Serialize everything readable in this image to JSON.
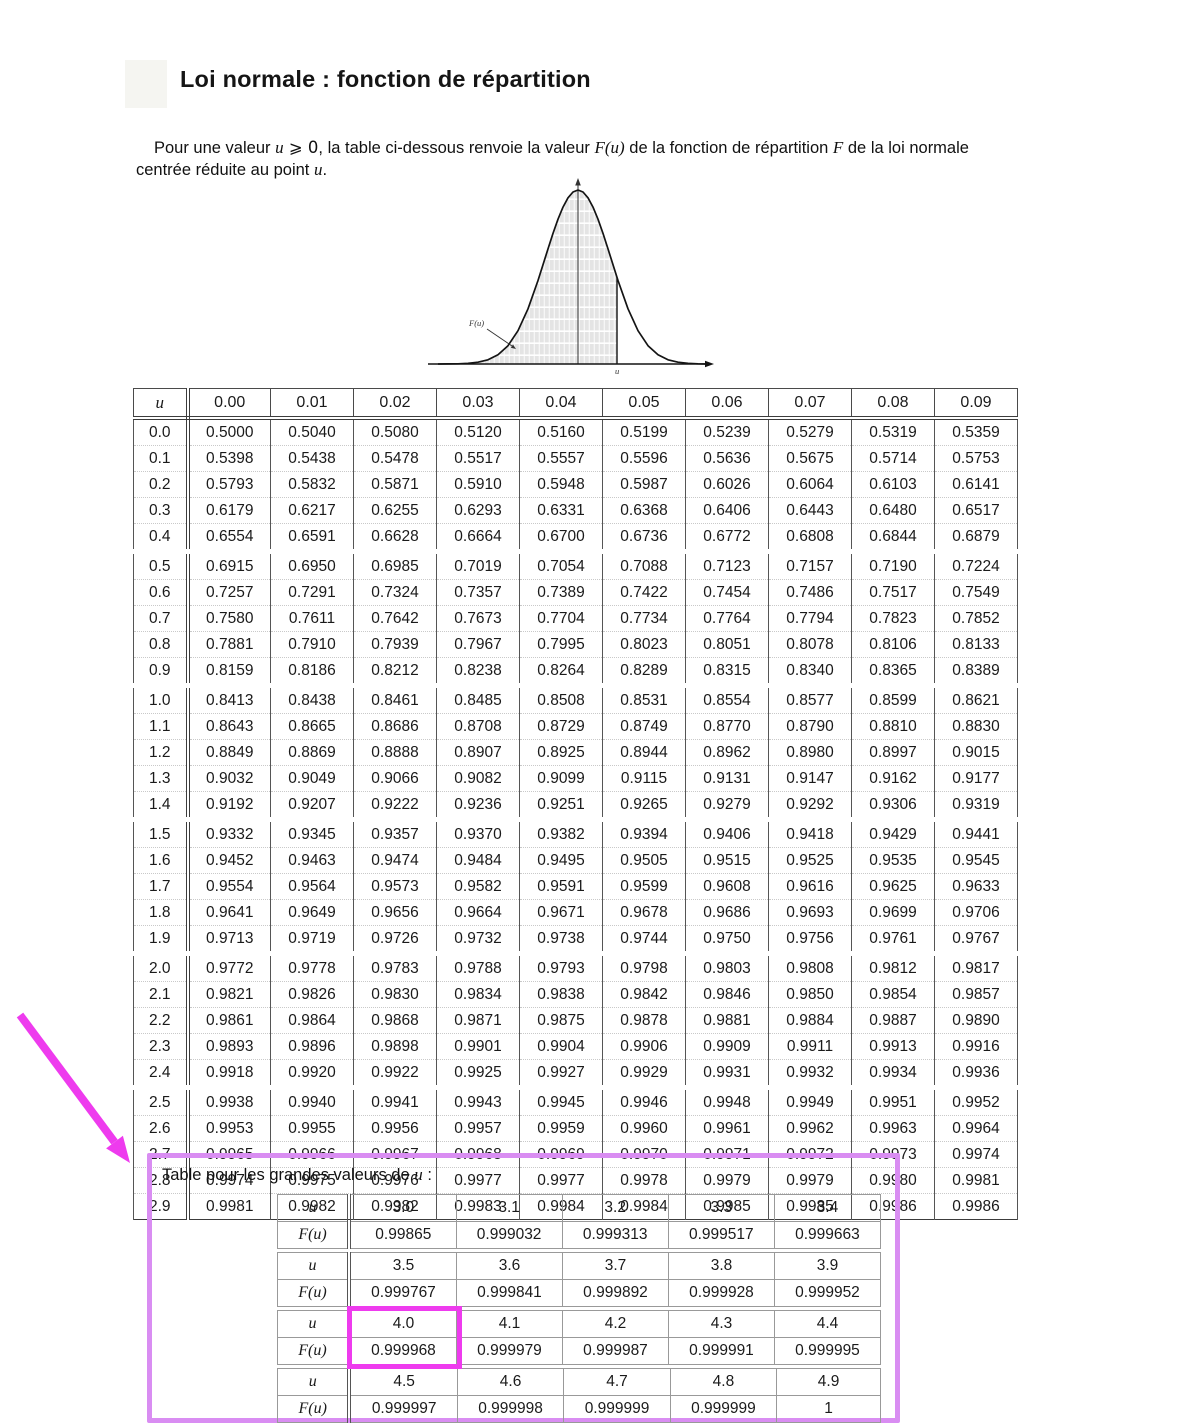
{
  "page": {
    "title": "Loi normale : fonction de répartition"
  },
  "intro": {
    "p1": "Pour une valeur ",
    "m1": "u",
    "s1": " ⩾ 0",
    "p2": ", la table ci-dessous renvoie la valeur ",
    "m2": "F(u)",
    "p3": " de la fonction de répartition ",
    "m3": "F",
    "p4": " de la loi normale centrée réduite au point ",
    "m4": "u",
    "p5": "."
  },
  "diagram": {
    "area_label": "F(u)",
    "axis_label": "u"
  },
  "main_table": {
    "corner_header": "u",
    "col_headers": [
      "0.00",
      "0.01",
      "0.02",
      "0.03",
      "0.04",
      "0.05",
      "0.06",
      "0.07",
      "0.08",
      "0.09"
    ],
    "rows": [
      [
        "0.0",
        "0.5000",
        "0.5040",
        "0.5080",
        "0.5120",
        "0.5160",
        "0.5199",
        "0.5239",
        "0.5279",
        "0.5319",
        "0.5359"
      ],
      [
        "0.1",
        "0.5398",
        "0.5438",
        "0.5478",
        "0.5517",
        "0.5557",
        "0.5596",
        "0.5636",
        "0.5675",
        "0.5714",
        "0.5753"
      ],
      [
        "0.2",
        "0.5793",
        "0.5832",
        "0.5871",
        "0.5910",
        "0.5948",
        "0.5987",
        "0.6026",
        "0.6064",
        "0.6103",
        "0.6141"
      ],
      [
        "0.3",
        "0.6179",
        "0.6217",
        "0.6255",
        "0.6293",
        "0.6331",
        "0.6368",
        "0.6406",
        "0.6443",
        "0.6480",
        "0.6517"
      ],
      [
        "0.4",
        "0.6554",
        "0.6591",
        "0.6628",
        "0.6664",
        "0.6700",
        "0.6736",
        "0.6772",
        "0.6808",
        "0.6844",
        "0.6879"
      ],
      [
        "0.5",
        "0.6915",
        "0.6950",
        "0.6985",
        "0.7019",
        "0.7054",
        "0.7088",
        "0.7123",
        "0.7157",
        "0.7190",
        "0.7224"
      ],
      [
        "0.6",
        "0.7257",
        "0.7291",
        "0.7324",
        "0.7357",
        "0.7389",
        "0.7422",
        "0.7454",
        "0.7486",
        "0.7517",
        "0.7549"
      ],
      [
        "0.7",
        "0.7580",
        "0.7611",
        "0.7642",
        "0.7673",
        "0.7704",
        "0.7734",
        "0.7764",
        "0.7794",
        "0.7823",
        "0.7852"
      ],
      [
        "0.8",
        "0.7881",
        "0.7910",
        "0.7939",
        "0.7967",
        "0.7995",
        "0.8023",
        "0.8051",
        "0.8078",
        "0.8106",
        "0.8133"
      ],
      [
        "0.9",
        "0.8159",
        "0.8186",
        "0.8212",
        "0.8238",
        "0.8264",
        "0.8289",
        "0.8315",
        "0.8340",
        "0.8365",
        "0.8389"
      ],
      [
        "1.0",
        "0.8413",
        "0.8438",
        "0.8461",
        "0.8485",
        "0.8508",
        "0.8531",
        "0.8554",
        "0.8577",
        "0.8599",
        "0.8621"
      ],
      [
        "1.1",
        "0.8643",
        "0.8665",
        "0.8686",
        "0.8708",
        "0.8729",
        "0.8749",
        "0.8770",
        "0.8790",
        "0.8810",
        "0.8830"
      ],
      [
        "1.2",
        "0.8849",
        "0.8869",
        "0.8888",
        "0.8907",
        "0.8925",
        "0.8944",
        "0.8962",
        "0.8980",
        "0.8997",
        "0.9015"
      ],
      [
        "1.3",
        "0.9032",
        "0.9049",
        "0.9066",
        "0.9082",
        "0.9099",
        "0.9115",
        "0.9131",
        "0.9147",
        "0.9162",
        "0.9177"
      ],
      [
        "1.4",
        "0.9192",
        "0.9207",
        "0.9222",
        "0.9236",
        "0.9251",
        "0.9265",
        "0.9279",
        "0.9292",
        "0.9306",
        "0.9319"
      ],
      [
        "1.5",
        "0.9332",
        "0.9345",
        "0.9357",
        "0.9370",
        "0.9382",
        "0.9394",
        "0.9406",
        "0.9418",
        "0.9429",
        "0.9441"
      ],
      [
        "1.6",
        "0.9452",
        "0.9463",
        "0.9474",
        "0.9484",
        "0.9495",
        "0.9505",
        "0.9515",
        "0.9525",
        "0.9535",
        "0.9545"
      ],
      [
        "1.7",
        "0.9554",
        "0.9564",
        "0.9573",
        "0.9582",
        "0.9591",
        "0.9599",
        "0.9608",
        "0.9616",
        "0.9625",
        "0.9633"
      ],
      [
        "1.8",
        "0.9641",
        "0.9649",
        "0.9656",
        "0.9664",
        "0.9671",
        "0.9678",
        "0.9686",
        "0.9693",
        "0.9699",
        "0.9706"
      ],
      [
        "1.9",
        "0.9713",
        "0.9719",
        "0.9726",
        "0.9732",
        "0.9738",
        "0.9744",
        "0.9750",
        "0.9756",
        "0.9761",
        "0.9767"
      ],
      [
        "2.0",
        "0.9772",
        "0.9778",
        "0.9783",
        "0.9788",
        "0.9793",
        "0.9798",
        "0.9803",
        "0.9808",
        "0.9812",
        "0.9817"
      ],
      [
        "2.1",
        "0.9821",
        "0.9826",
        "0.9830",
        "0.9834",
        "0.9838",
        "0.9842",
        "0.9846",
        "0.9850",
        "0.9854",
        "0.9857"
      ],
      [
        "2.2",
        "0.9861",
        "0.9864",
        "0.9868",
        "0.9871",
        "0.9875",
        "0.9878",
        "0.9881",
        "0.9884",
        "0.9887",
        "0.9890"
      ],
      [
        "2.3",
        "0.9893",
        "0.9896",
        "0.9898",
        "0.9901",
        "0.9904",
        "0.9906",
        "0.9909",
        "0.9911",
        "0.9913",
        "0.9916"
      ],
      [
        "2.4",
        "0.9918",
        "0.9920",
        "0.9922",
        "0.9925",
        "0.9927",
        "0.9929",
        "0.9931",
        "0.9932",
        "0.9934",
        "0.9936"
      ],
      [
        "2.5",
        "0.9938",
        "0.9940",
        "0.9941",
        "0.9943",
        "0.9945",
        "0.9946",
        "0.9948",
        "0.9949",
        "0.9951",
        "0.9952"
      ],
      [
        "2.6",
        "0.9953",
        "0.9955",
        "0.9956",
        "0.9957",
        "0.9959",
        "0.9960",
        "0.9961",
        "0.9962",
        "0.9963",
        "0.9964"
      ],
      [
        "2.7",
        "0.9965",
        "0.9966",
        "0.9967",
        "0.9968",
        "0.9969",
        "0.9970",
        "0.9971",
        "0.9972",
        "0.9973",
        "0.9974"
      ],
      [
        "2.8",
        "0.9974",
        "0.9975",
        "0.9976",
        "0.9977",
        "0.9977",
        "0.9978",
        "0.9979",
        "0.9979",
        "0.9980",
        "0.9981"
      ],
      [
        "2.9",
        "0.9981",
        "0.9982",
        "0.9982",
        "0.9983",
        "0.9984",
        "0.9984",
        "0.9985",
        "0.9985",
        "0.9986",
        "0.9986"
      ]
    ]
  },
  "large_values": {
    "caption_prefix": "Table pour les grandes valeurs de ",
    "caption_math": "u",
    "caption_suffix": " :",
    "u_label": "u",
    "f_label": "F(u)",
    "tables": [
      {
        "u": [
          "3.0",
          "3.1",
          "3.2",
          "3.3",
          "3.4"
        ],
        "f": [
          "0.99865",
          "0.999032",
          "0.999313",
          "0.999517",
          "0.999663"
        ]
      },
      {
        "u": [
          "3.5",
          "3.6",
          "3.7",
          "3.8",
          "3.9"
        ],
        "f": [
          "0.999767",
          "0.999841",
          "0.999892",
          "0.999928",
          "0.999952"
        ]
      },
      {
        "u": [
          "4.0",
          "4.1",
          "4.2",
          "4.3",
          "4.4"
        ],
        "f": [
          "0.999968",
          "0.999979",
          "0.999987",
          "0.999991",
          "0.999995"
        ]
      },
      {
        "u": [
          "4.5",
          "4.6",
          "4.7",
          "4.8",
          "4.9"
        ],
        "f": [
          "0.999997",
          "0.999998",
          "0.999999",
          "0.999999",
          "1"
        ]
      }
    ],
    "highlight": {
      "table": 2,
      "col": 0
    }
  },
  "colors": {
    "highlight_magenta": "#ee3bee",
    "panel_border_purple": "#d98df2"
  }
}
